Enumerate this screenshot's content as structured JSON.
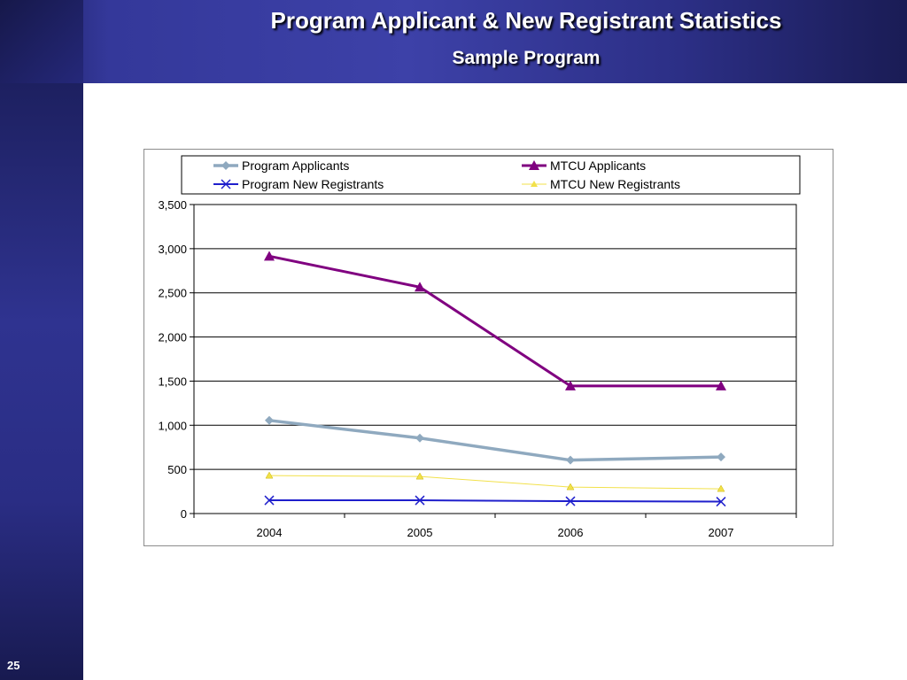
{
  "slide": {
    "title": "Program Applicant & New Registrant Statistics",
    "subtitle": "Sample Program",
    "number": "25"
  },
  "chart_data": {
    "type": "line",
    "categories": [
      "2004",
      "2005",
      "2006",
      "2007"
    ],
    "series": [
      {
        "name": "Program Applicants",
        "values": [
          1055,
          855,
          605,
          640
        ],
        "color": "#8fa9bf",
        "marker": "diamond"
      },
      {
        "name": "MTCU Applicants",
        "values": [
          2915,
          2565,
          1445,
          1445
        ],
        "color": "#800080",
        "marker": "triangle"
      },
      {
        "name": "Program New Registrants",
        "values": [
          150,
          150,
          140,
          135
        ],
        "color": "#1f1fcc",
        "marker": "x"
      },
      {
        "name": "MTCU New Registrants",
        "values": [
          430,
          420,
          300,
          280
        ],
        "color": "#f2e14a",
        "marker": "triangle"
      }
    ],
    "ylim": [
      0,
      3500
    ],
    "yticks": [
      "0",
      "500",
      "1,000",
      "1,500",
      "2,000",
      "2,500",
      "3,000",
      "3,500"
    ],
    "grid": true,
    "legend": "top"
  }
}
